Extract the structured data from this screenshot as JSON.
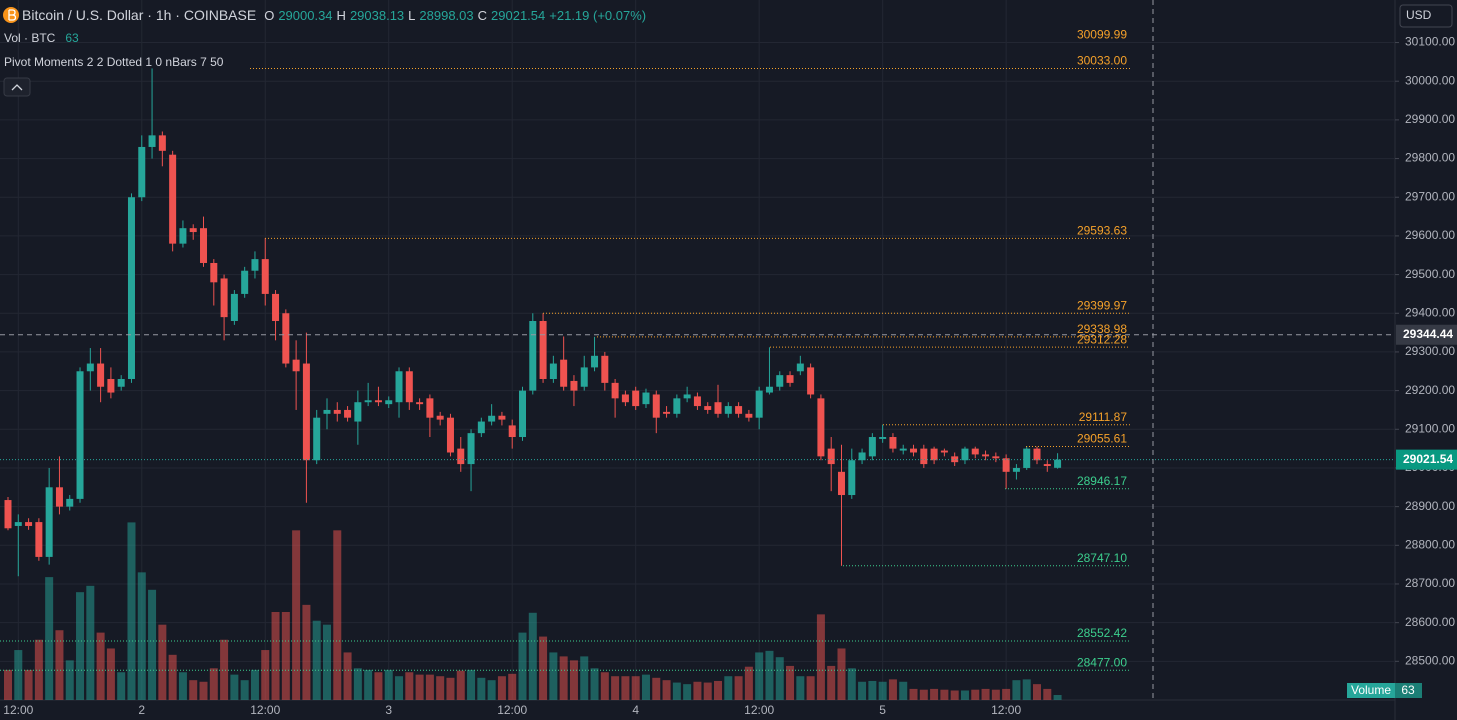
{
  "symbol": "Bitcoin / U.S. Dollar · 1h · COINBASE",
  "ohlc_labels": [
    "O",
    "H",
    "L",
    "C"
  ],
  "change": "+21.19 (+0.07%)",
  "volume_title": "Vol · BTC",
  "indicator": "Pivot Moments 2 2 Dotted 1 0 nBars 7 50",
  "currency": "USD",
  "volume_label": "Volume",
  "chart_data": {
    "type": "candlestick",
    "up_color": "#26a69a",
    "down_color": "#ef5350",
    "grid": true,
    "ylim": [
      28400,
      30210
    ],
    "volume_ylim": [
      0,
      2800
    ],
    "yticks": [
      {
        "value": 28500,
        "label": "28500.00"
      },
      {
        "value": 28600,
        "label": "28600.00"
      },
      {
        "value": 28700,
        "label": "28700.00"
      },
      {
        "value": 28800,
        "label": "28800.00"
      },
      {
        "value": 28900,
        "label": "28900.00"
      },
      {
        "value": 29000,
        "label": "29000.00"
      },
      {
        "value": 29100,
        "label": "29100.00"
      },
      {
        "value": 29200,
        "label": "29200.00"
      },
      {
        "value": 29300,
        "label": "29300.00"
      },
      {
        "value": 29400,
        "label": "29400.00"
      },
      {
        "value": 29500,
        "label": "29500.00"
      },
      {
        "value": 29600,
        "label": "29600.00"
      },
      {
        "value": 29700,
        "label": "29700.00"
      },
      {
        "value": 29800,
        "label": "29800.00"
      },
      {
        "value": 29900,
        "label": "29900.00"
      },
      {
        "value": 30000,
        "label": "30000.00"
      },
      {
        "value": 30100,
        "label": "30100.00"
      }
    ],
    "xticks": [
      {
        "value": 1,
        "label": "12:00"
      },
      {
        "value": 13,
        "label": "2"
      },
      {
        "value": 25,
        "label": "12:00"
      },
      {
        "value": 37,
        "label": "3"
      },
      {
        "value": 49,
        "label": "12:00"
      },
      {
        "value": 61,
        "label": "4"
      },
      {
        "value": 73,
        "label": "12:00"
      },
      {
        "value": 85,
        "label": "5"
      },
      {
        "value": 97,
        "label": "12:00"
      }
    ],
    "crosshair_price": 29344.44,
    "open": [
      28917,
      28850,
      28860,
      28860,
      28770,
      28950,
      28900,
      28920,
      29250,
      29270,
      29230,
      29210,
      29230,
      29700,
      29830,
      29860,
      29810,
      29580,
      29620,
      29620,
      29530,
      29490,
      29380,
      29450,
      29510,
      29540,
      29450,
      29400,
      29280,
      29270,
      29020,
      29140,
      29150,
      29150,
      29120,
      29170,
      29175,
      29165,
      29170,
      29250,
      29170,
      29180,
      29135,
      29130,
      29050,
      29010,
      29090,
      29120,
      29135,
      29110,
      29080,
      29200,
      29380,
      29230,
      29280,
      29225,
      29210,
      29260,
      29290,
      29220,
      29190,
      29200,
      29165,
      29190,
      29145,
      29140,
      29180,
      29185,
      29160,
      29170,
      29140,
      29160,
      29140,
      29130,
      29195,
      29210,
      29240,
      29250,
      29260,
      29180,
      29050,
      28990,
      28930,
      29020,
      29030,
      29075,
      29080,
      29045,
      29050,
      29050,
      29050,
      29045,
      29030,
      29020,
      29050,
      29035,
      29030,
      29025,
      28990,
      29000,
      29050,
      29010,
      29000.34
    ],
    "high": [
      28925,
      28880,
      28870,
      28870,
      29000,
      29030,
      28930,
      29260,
      29310,
      29310,
      29260,
      29240,
      29710,
      29860,
      30033,
      29870,
      29820,
      29640,
      29630,
      29650,
      29540,
      29500,
      29460,
      29520,
      29560,
      29594,
      29460,
      29410,
      29330,
      29350,
      29150,
      29180,
      29170,
      29160,
      29200,
      29220,
      29210,
      29185,
      29260,
      29260,
      29180,
      29190,
      29145,
      29140,
      29080,
      29100,
      29130,
      29165,
      29145,
      29125,
      29210,
      29400,
      29400,
      29290,
      29340,
      29240,
      29290,
      29339,
      29300,
      29230,
      29200,
      29210,
      29205,
      29200,
      29160,
      29190,
      29210,
      29195,
      29170,
      29215,
      29170,
      29170,
      29150,
      29210,
      29312,
      29250,
      29250,
      29290,
      29270,
      29190,
      29080,
      29060,
      29050,
      29050,
      29090,
      29112,
      29090,
      29060,
      29060,
      29060,
      29055,
      29050,
      29040,
      29055,
      29055,
      29045,
      29040,
      29035,
      29010,
      29056,
      29055,
      29020,
      29038.13
    ],
    "low": [
      28839,
      28720,
      28840,
      28760,
      28750,
      28880,
      28890,
      28910,
      29200,
      29170,
      29180,
      29200,
      29220,
      29690,
      29800,
      29780,
      29560,
      29570,
      29590,
      29520,
      29420,
      29330,
      29370,
      29440,
      29490,
      29420,
      29330,
      29260,
      29150,
      28910,
      29010,
      29100,
      29120,
      29120,
      29060,
      29160,
      29160,
      29155,
      29130,
      29150,
      29150,
      29080,
      29110,
      29030,
      28990,
      28940,
      29080,
      29110,
      29110,
      29050,
      29070,
      29190,
      29220,
      29220,
      29200,
      29160,
      29200,
      29250,
      29200,
      29130,
      29160,
      29150,
      29155,
      29090,
      29130,
      29130,
      29170,
      29150,
      29140,
      29130,
      29130,
      29130,
      29120,
      29100,
      29190,
      29200,
      29210,
      29240,
      29180,
      29020,
      28940,
      28747,
      28920,
      29010,
      29020,
      29065,
      29040,
      29035,
      29030,
      29000,
      29010,
      29030,
      29005,
      29010,
      29025,
      29020,
      29015,
      28946,
      28970,
      28995,
      29010,
      28990,
      28998.03
    ],
    "close": [
      28844,
      28860,
      28850,
      28770,
      28950,
      28900,
      28920,
      29250,
      29270,
      29210,
      29195,
      29230,
      29700,
      29830,
      29860,
      29820,
      29580,
      29620,
      29610,
      29530,
      29480,
      29390,
      29450,
      29510,
      29540,
      29450,
      29380,
      29270,
      29250,
      29020,
      29130,
      29150,
      29140,
      29130,
      29170,
      29175,
      29170,
      29175,
      29250,
      29170,
      29165,
      29130,
      29125,
      29040,
      29010,
      29090,
      29120,
      29135,
      29125,
      29080,
      29200,
      29380,
      29230,
      29270,
      29210,
      29200,
      29260,
      29290,
      29220,
      29180,
      29170,
      29160,
      29195,
      29130,
      29140,
      29180,
      29190,
      29160,
      29150,
      29140,
      29160,
      29140,
      29130,
      29200,
      29210,
      29240,
      29220,
      29270,
      29190,
      29030,
      29010,
      28930,
      29020,
      29040,
      29080,
      29080,
      29050,
      29050,
      29040,
      29010,
      29020,
      29040,
      29015,
      29050,
      29035,
      29030,
      29025,
      28990,
      29000,
      29050,
      29020,
      29005,
      29021.54
    ],
    "volume": [
      380,
      630,
      380,
      760,
      1550,
      880,
      500,
      1360,
      1440,
      850,
      650,
      350,
      2240,
      1610,
      1390,
      950,
      570,
      350,
      250,
      230,
      400,
      760,
      320,
      250,
      380,
      630,
      1110,
      1110,
      2140,
      1200,
      1000,
      950,
      2140,
      600,
      400,
      380,
      350,
      380,
      300,
      350,
      320,
      320,
      300,
      280,
      370,
      380,
      280,
      250,
      300,
      330,
      850,
      1100,
      800,
      600,
      550,
      500,
      550,
      400,
      350,
      300,
      300,
      300,
      320,
      280,
      250,
      220,
      200,
      230,
      220,
      240,
      300,
      300,
      420,
      600,
      620,
      540,
      430,
      300,
      300,
      1080,
      430,
      650,
      400,
      230,
      240,
      230,
      260,
      230,
      140,
      130,
      140,
      130,
      120,
      120,
      130,
      140,
      130,
      140,
      250,
      260,
      200,
      140,
      63
    ],
    "pivots": {
      "values": [
        30099.99,
        30033.0,
        29593.63,
        29399.97,
        29338.98,
        29312.28,
        29111.87,
        29055.61,
        28946.17,
        28747.1,
        28552.42,
        28477.0
      ],
      "value_labels": [
        "30099.99",
        "30033.00",
        "29593.63",
        "29399.97",
        "29338.98",
        "29312.28",
        "29111.87",
        "29055.61",
        "28946.17",
        "28747.10",
        "28552.42",
        "28477.00"
      ],
      "colors": [
        "#f5a12a",
        "#f5a12a",
        "#f5a12a",
        "#f5a12a",
        "#f5a12a",
        "#f5a12a",
        "#f5a12a",
        "#f5a12a",
        "#3ccf8e",
        "#3ccf8e",
        "#3ccf8e",
        "#3ccf8e"
      ]
    }
  }
}
